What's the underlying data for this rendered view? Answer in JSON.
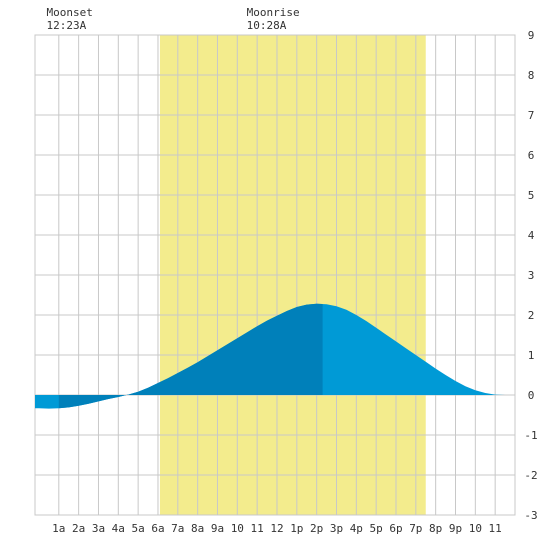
{
  "chart_data": {
    "type": "area",
    "title": "",
    "xlabel": "",
    "ylabel": "",
    "xlim": [
      -0.2,
      24
    ],
    "ylim": [
      -3,
      9
    ],
    "grid": true,
    "x_tick_labels": [
      "1a",
      "2a",
      "3a",
      "4a",
      "5a",
      "6a",
      "7a",
      "8a",
      "9a",
      "10",
      "11",
      "12",
      "1p",
      "2p",
      "3p",
      "4p",
      "5p",
      "6p",
      "7p",
      "8p",
      "9p",
      "10",
      "11"
    ],
    "x_tick_values": [
      1,
      2,
      3,
      4,
      5,
      6,
      7,
      8,
      9,
      10,
      11,
      12,
      13,
      14,
      15,
      16,
      17,
      18,
      19,
      20,
      21,
      22,
      23
    ],
    "y_tick_values": [
      -3,
      -2,
      -1,
      0,
      1,
      2,
      3,
      4,
      5,
      6,
      7,
      8,
      9
    ],
    "daylight": {
      "start_hour": 6.1,
      "end_hour": 19.5
    },
    "moon_events": [
      {
        "label": "Moonset",
        "time": "12:23A",
        "hour": 0.38
      },
      {
        "label": "Moonrise",
        "time": "10:28A",
        "hour": 10.47
      }
    ],
    "tide_series": {
      "name": "",
      "x": [
        -0.2,
        0.0,
        0.5,
        1.0,
        1.5,
        2.0,
        2.5,
        3.0,
        3.5,
        4.0,
        4.5,
        5.0,
        5.5,
        6.0,
        6.5,
        7.0,
        7.5,
        8.0,
        8.5,
        9.0,
        9.5,
        10.0,
        10.5,
        11.0,
        11.5,
        12.0,
        12.5,
        13.0,
        13.5,
        14.0,
        14.5,
        15.0,
        15.5,
        16.0,
        16.5,
        17.0,
        17.5,
        18.0,
        18.5,
        19.0,
        19.5,
        20.0,
        20.5,
        21.0,
        21.5,
        22.0,
        22.5,
        23.0,
        23.5,
        24.0
      ],
      "y": [
        -0.33,
        -0.33,
        -0.34,
        -0.33,
        -0.31,
        -0.27,
        -0.22,
        -0.16,
        -0.1,
        -0.05,
        0.01,
        0.08,
        0.18,
        0.3,
        0.42,
        0.55,
        0.68,
        0.82,
        0.97,
        1.12,
        1.27,
        1.42,
        1.57,
        1.72,
        1.86,
        1.98,
        2.1,
        2.2,
        2.26,
        2.28,
        2.27,
        2.22,
        2.13,
        2.0,
        1.85,
        1.68,
        1.51,
        1.34,
        1.17,
        1.0,
        0.83,
        0.66,
        0.5,
        0.35,
        0.22,
        0.12,
        0.05,
        0.01,
        0.0,
        0.0
      ]
    },
    "rising_segments": [
      [
        1.0,
        14.3
      ]
    ],
    "colors": {
      "background": "#ffffff",
      "daylight": "#f3ec8d",
      "grid": "#c8c8c8",
      "tide_rising": "#0080ba",
      "tide_falling": "#009ad6"
    }
  }
}
